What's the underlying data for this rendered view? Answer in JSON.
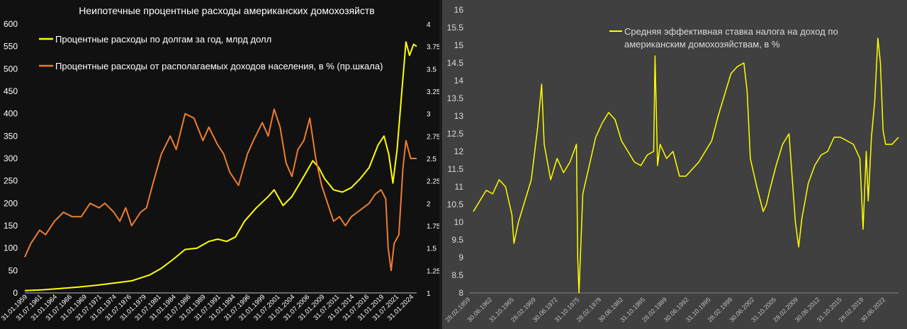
{
  "chart_data": [
    {
      "type": "line",
      "title": "Неипотечные процентные расходы американских домохозяйств",
      "legend_position": "top-left",
      "grid": false,
      "y_left_ticks": [
        0,
        50,
        100,
        150,
        200,
        250,
        300,
        350,
        400,
        450,
        500,
        550,
        600
      ],
      "y_left_lim": [
        0,
        600
      ],
      "y_right_ticks": [
        "1",
        "1.25",
        "1.5",
        "1.75",
        "2",
        "2.25",
        "2.5",
        "2.75",
        "3",
        "3.25",
        "3.5",
        "3.75",
        "4"
      ],
      "y_right_lim": [
        1,
        4
      ],
      "x_lim": [
        1959.0,
        2025.0
      ],
      "x_ticks": [
        "31.01.1959",
        "31.07.1961",
        "31.01.1964",
        "31.07.1966",
        "31.01.1969",
        "31.07.1971",
        "31.01.1974",
        "31.07.1976",
        "31.01.1979",
        "31.07.1981",
        "31.01.1984",
        "31.07.1986",
        "31.01.1989",
        "31.07.1991",
        "31.01.1994",
        "31.07.1996",
        "31.01.1999",
        "31.07.2001",
        "31.01.2004",
        "31.07.2006",
        "31.01.2009",
        "31.07.2011",
        "31.01.2014",
        "31.07.2016",
        "31.01.2019",
        "31.07.2021",
        "31.01.2024"
      ],
      "series": [
        {
          "name": "Процентные расходы по долгам за год, млрд долл",
          "color": "#ffff00",
          "axis": "left",
          "x": [
            1959.0,
            1962.0,
            1965.0,
            1968.0,
            1971.0,
            1974.0,
            1977.0,
            1980.0,
            1982.0,
            1984.0,
            1986.0,
            1988.0,
            1990.0,
            1991.5,
            1993.0,
            1994.5,
            1996.0,
            1998.0,
            2000.0,
            2001.0,
            2002.5,
            2004.0,
            2006.0,
            2007.5,
            2008.5,
            2009.5,
            2011.0,
            2012.5,
            2014.0,
            2015.5,
            2017.0,
            2018.5,
            2019.5,
            2020.3,
            2021.0,
            2021.7,
            2022.5,
            2023.2,
            2023.8,
            2024.5,
            2025.0
          ],
          "values": [
            5,
            7,
            10,
            13,
            17,
            22,
            27,
            40,
            55,
            75,
            97,
            100,
            115,
            120,
            115,
            125,
            160,
            190,
            215,
            230,
            195,
            215,
            260,
            295,
            280,
            255,
            230,
            225,
            235,
            255,
            280,
            330,
            350,
            310,
            245,
            320,
            450,
            560,
            530,
            555,
            550
          ]
        },
        {
          "name": "Процентные расходы от располагаемых доходов населения, в % (пр.шкала)",
          "color": "#ed7d31",
          "axis": "right",
          "x": [
            1959.0,
            1960.0,
            1961.5,
            1962.5,
            1964.0,
            1965.5,
            1967.0,
            1968.5,
            1970.0,
            1971.5,
            1972.5,
            1974.0,
            1975.0,
            1976.0,
            1977.0,
            1978.5,
            1979.5,
            1980.5,
            1982.0,
            1983.5,
            1984.5,
            1986.0,
            1987.5,
            1989.0,
            1990.0,
            1991.5,
            1992.5,
            1993.5,
            1995.0,
            1996.5,
            1997.5,
            1999.0,
            2000.0,
            2001.0,
            2002.0,
            2003.0,
            2004.0,
            2005.0,
            2006.0,
            2007.0,
            2008.0,
            2009.0,
            2010.0,
            2011.0,
            2012.0,
            2013.0,
            2014.0,
            2015.0,
            2016.0,
            2017.0,
            2018.0,
            2019.0,
            2019.8,
            2020.2,
            2020.7,
            2021.2,
            2022.0,
            2022.7,
            2023.2,
            2024.0,
            2025.0
          ],
          "values": [
            1.4,
            1.55,
            1.7,
            1.65,
            1.8,
            1.9,
            1.85,
            1.85,
            2.0,
            1.95,
            2.0,
            1.9,
            1.8,
            1.95,
            1.75,
            1.9,
            1.95,
            2.2,
            2.55,
            2.75,
            2.6,
            3.0,
            2.95,
            2.7,
            2.85,
            2.65,
            2.55,
            2.35,
            2.2,
            2.55,
            2.7,
            2.9,
            2.75,
            3.05,
            2.85,
            2.45,
            2.3,
            2.6,
            2.7,
            2.95,
            2.5,
            2.2,
            2.0,
            1.8,
            1.85,
            1.75,
            1.85,
            1.9,
            1.95,
            2.0,
            2.1,
            2.15,
            2.05,
            1.5,
            1.25,
            1.55,
            1.65,
            2.4,
            2.7,
            2.5,
            2.5
          ]
        }
      ]
    },
    {
      "type": "line",
      "title": "",
      "legend_position": "top-right",
      "grid": false,
      "y_lim": [
        8,
        16
      ],
      "y_ticks": [
        "8",
        "8.5",
        "9",
        "9.5",
        "10",
        "10.5",
        "11",
        "11.5",
        "12",
        "12.5",
        "13",
        "13.5",
        "14",
        "14.5",
        "15",
        "15.5",
        "16"
      ],
      "x_lim": [
        1959.0,
        2025.0
      ],
      "x_ticks": [
        "28.02.1959",
        "30.06.1962",
        "31.10.1965",
        "28.02.1969",
        "30.06.1972",
        "31.10.1975",
        "28.02.1979",
        "30.06.1982",
        "31.10.1985",
        "28.02.1989",
        "30.06.1992",
        "31.10.1995",
        "28.02.1999",
        "30.06.2002",
        "31.10.2005",
        "28.02.2009",
        "30.06.2012",
        "31.10.2015",
        "28.02.2019",
        "30.06.2022"
      ],
      "series": [
        {
          "name": "Средняя эффективная ставка налога на доход по американским домохозяйствам, в %",
          "color": "#ffff00",
          "x": [
            1959.0,
            1960.0,
            1961.0,
            1962.0,
            1963.0,
            1964.0,
            1965.0,
            1965.3,
            1966.0,
            1967.0,
            1968.0,
            1969.0,
            1969.6,
            1970.0,
            1971.0,
            1972.0,
            1973.0,
            1974.0,
            1975.0,
            1975.2,
            1975.4,
            1976.0,
            1977.0,
            1978.0,
            1979.0,
            1980.0,
            1981.0,
            1982.0,
            1983.0,
            1984.0,
            1985.0,
            1986.0,
            1987.0,
            1987.2,
            1987.6,
            1988.0,
            1989.0,
            1990.0,
            1991.0,
            1992.0,
            1993.0,
            1994.0,
            1995.0,
            1996.0,
            1997.0,
            1998.0,
            1999.0,
            2000.0,
            2001.0,
            2001.5,
            2002.0,
            2003.0,
            2004.0,
            2004.5,
            2005.0,
            2006.0,
            2007.0,
            2008.0,
            2009.0,
            2009.5,
            2010.0,
            2011.0,
            2012.0,
            2013.0,
            2014.0,
            2015.0,
            2016.0,
            2017.0,
            2018.0,
            2019.0,
            2019.5,
            2020.0,
            2020.3,
            2020.8,
            2021.3,
            2021.8,
            2022.2,
            2022.6,
            2023.0,
            2024.0,
            2025.0
          ],
          "values": [
            10.3,
            10.6,
            10.9,
            10.8,
            11.2,
            11.0,
            10.2,
            9.4,
            10.0,
            10.6,
            11.2,
            12.7,
            13.9,
            12.2,
            11.2,
            11.8,
            11.4,
            11.7,
            12.2,
            9.0,
            8.0,
            10.8,
            11.6,
            12.4,
            12.8,
            13.1,
            12.9,
            12.3,
            12.0,
            11.7,
            11.6,
            11.9,
            12.0,
            14.7,
            11.6,
            12.2,
            11.8,
            12.0,
            11.3,
            11.3,
            11.5,
            11.7,
            12.0,
            12.3,
            13.0,
            13.6,
            14.2,
            14.4,
            14.5,
            13.7,
            11.8,
            11.0,
            10.3,
            10.5,
            10.9,
            11.6,
            12.2,
            12.5,
            10.0,
            9.3,
            10.1,
            11.1,
            11.6,
            11.9,
            12.0,
            12.4,
            12.4,
            12.3,
            12.2,
            11.8,
            9.8,
            12.0,
            10.6,
            12.4,
            13.4,
            15.2,
            14.5,
            12.6,
            12.2,
            12.2,
            12.4
          ]
        }
      ]
    }
  ]
}
